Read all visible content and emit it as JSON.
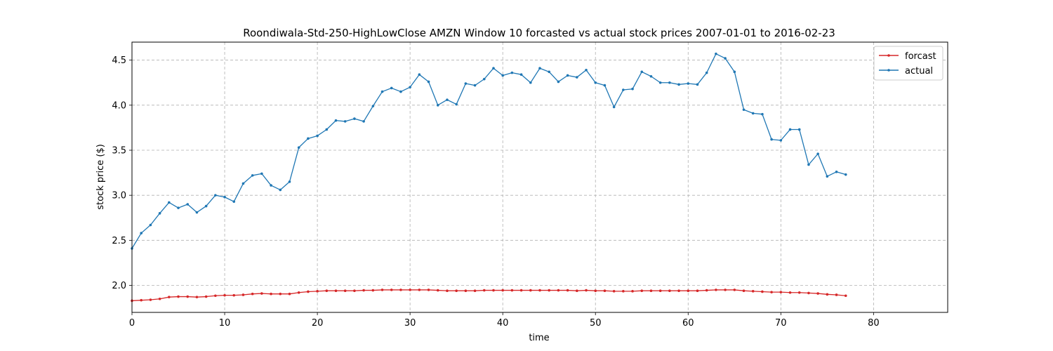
{
  "chart_data": {
    "type": "line",
    "title": "Roondiwala-Std-250-HighLowClose AMZN Window 10 forcasted vs actual stock prices 2007-01-01 to 2016-02-23",
    "xlabel": "time",
    "ylabel": "stock price ($)",
    "xlim": [
      0,
      88
    ],
    "ylim": [
      1.7,
      4.7
    ],
    "xticks": [
      0,
      10,
      20,
      30,
      40,
      50,
      60,
      70,
      80
    ],
    "yticks": [
      2.0,
      2.5,
      3.0,
      3.5,
      4.0,
      4.5
    ],
    "xtick_labels": [
      "0",
      "10",
      "20",
      "30",
      "40",
      "50",
      "60",
      "70",
      "80"
    ],
    "ytick_labels": [
      "2.0",
      "2.5",
      "3.0",
      "3.5",
      "4.0",
      "4.5"
    ],
    "grid": true,
    "legend_position": "top-right",
    "series": [
      {
        "name": "forcast",
        "color": "#d62728",
        "values": [
          1.83,
          1.835,
          1.84,
          1.85,
          1.87,
          1.875,
          1.875,
          1.87,
          1.875,
          1.885,
          1.89,
          1.89,
          1.895,
          1.905,
          1.91,
          1.905,
          1.905,
          1.905,
          1.92,
          1.93,
          1.935,
          1.94,
          1.94,
          1.94,
          1.94,
          1.945,
          1.945,
          1.95,
          1.95,
          1.95,
          1.95,
          1.95,
          1.95,
          1.945,
          1.94,
          1.94,
          1.94,
          1.94,
          1.945,
          1.945,
          1.945,
          1.945,
          1.945,
          1.945,
          1.945,
          1.945,
          1.945,
          1.945,
          1.94,
          1.945,
          1.94,
          1.94,
          1.935,
          1.935,
          1.935,
          1.94,
          1.94,
          1.94,
          1.94,
          1.94,
          1.94,
          1.94,
          1.945,
          1.95,
          1.95,
          1.95,
          1.94,
          1.935,
          1.93,
          1.925,
          1.925,
          1.92,
          1.92,
          1.915,
          1.91,
          1.9,
          1.895,
          1.885
        ]
      },
      {
        "name": "actual",
        "color": "#1f77b4",
        "values": [
          2.41,
          2.58,
          2.67,
          2.8,
          2.92,
          2.86,
          2.9,
          2.81,
          2.88,
          3.0,
          2.98,
          2.93,
          3.13,
          3.22,
          3.24,
          3.11,
          3.06,
          3.15,
          3.53,
          3.63,
          3.66,
          3.73,
          3.83,
          3.82,
          3.85,
          3.82,
          3.99,
          4.15,
          4.19,
          4.15,
          4.2,
          4.34,
          4.26,
          4.0,
          4.06,
          4.01,
          4.24,
          4.22,
          4.29,
          4.41,
          4.33,
          4.36,
          4.34,
          4.25,
          4.41,
          4.37,
          4.26,
          4.33,
          4.31,
          4.39,
          4.25,
          4.22,
          3.98,
          4.17,
          4.18,
          4.37,
          4.32,
          4.25,
          4.25,
          4.23,
          4.24,
          4.23,
          4.36,
          4.57,
          4.52,
          4.37,
          3.95,
          3.91,
          3.9,
          3.62,
          3.61,
          3.73,
          3.73,
          3.34,
          3.46,
          3.21,
          3.26,
          3.23
        ]
      }
    ]
  }
}
